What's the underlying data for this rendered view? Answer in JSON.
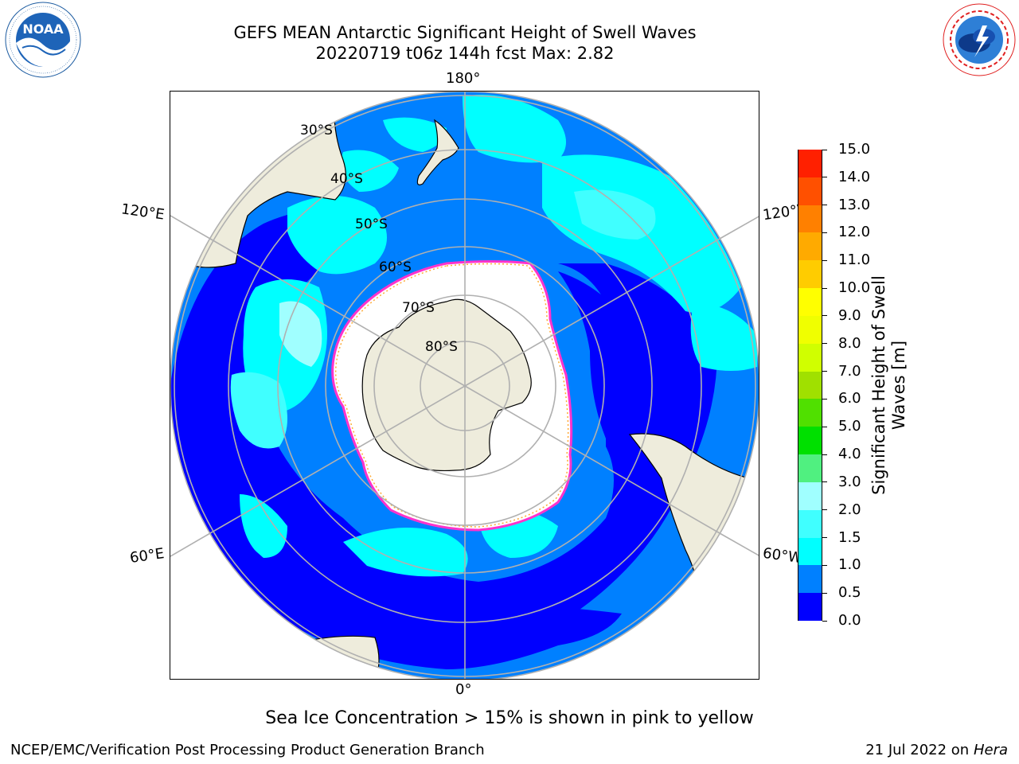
{
  "title": {
    "line1": "GEFS MEAN Antarctic Significant Height of Swell Waves",
    "line2": "20220719 t06z 144h fcst   Max: 2.82"
  },
  "logos": {
    "left": {
      "name": "noaa-logo",
      "text": "NOAA",
      "ring_text": "NATIONAL OCEANIC AND ATMOSPHERIC ADMINISTRATION · U.S. DEPARTMENT OF COMMERCE"
    },
    "right": {
      "name": "nws-logo",
      "ring_text": "NATIONAL WEATHER SERVICE"
    }
  },
  "map": {
    "projection": "south polar stereographic",
    "longitude_labels": {
      "top": "180°",
      "bottom": "0°",
      "upper_left": "120°E",
      "lower_left": "60°E",
      "upper_right": "120°W",
      "lower_right": "60°W"
    },
    "latitude_labels": [
      "30°S",
      "40°S",
      "50°S",
      "60°S",
      "70°S",
      "80°S"
    ],
    "colors": {
      "land": "#eeecdc",
      "ice": "#ffffff",
      "ice_edge": "#ff33cc",
      "ice_edge_inner": "#ffaa33",
      "grid": "#b0b0b0"
    }
  },
  "colorbar": {
    "title": "Significant Height of Swell Waves [m]",
    "levels": [
      "0.0",
      "0.5",
      "1.0",
      "1.5",
      "2.0",
      "3.0",
      "4.0",
      "5.0",
      "6.0",
      "7.0",
      "8.0",
      "9.0",
      "10.0",
      "11.0",
      "12.0",
      "13.0",
      "14.0",
      "15.0"
    ],
    "colors": [
      "#0000ff",
      "#0080ff",
      "#00ffff",
      "#40ffff",
      "#a0ffff",
      "#50f080",
      "#00e000",
      "#50e000",
      "#a0e000",
      "#d0ff00",
      "#f0ff00",
      "#ffff00",
      "#ffcc00",
      "#ffaa00",
      "#ff8000",
      "#ff5000",
      "#ff2000"
    ]
  },
  "footnote": "Sea Ice Concentration > 15% is shown in pink to yellow",
  "credit": "NCEP/EMC/Verification Post Processing Product Generation Branch",
  "date": {
    "text": "21 Jul 2022 on ",
    "host": "Hera"
  }
}
